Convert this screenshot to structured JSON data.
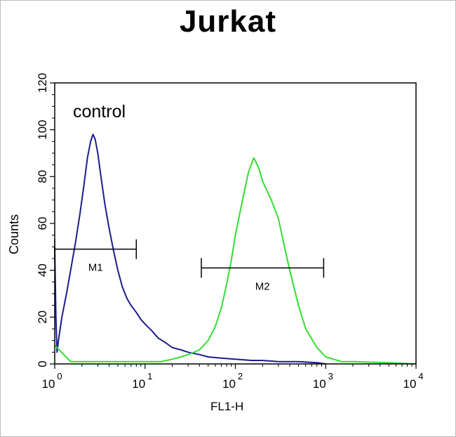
{
  "chart_data": {
    "type": "line",
    "title": "Jurkat",
    "xlabel": "FL1-H",
    "ylabel": "Counts",
    "x_scale": "log",
    "xlim": [
      1,
      10000
    ],
    "ylim": [
      0,
      120
    ],
    "x_ticks": [
      {
        "base": "10",
        "exp": "0"
      },
      {
        "base": "10",
        "exp": "1"
      },
      {
        "base": "10",
        "exp": "2"
      },
      {
        "base": "10",
        "exp": "3"
      },
      {
        "base": "10",
        "exp": "4"
      }
    ],
    "y_ticks": [
      "0",
      "20",
      "40",
      "60",
      "80",
      "100",
      "120"
    ],
    "y_tick_values": [
      0,
      20,
      40,
      60,
      80,
      100,
      120
    ],
    "annotation": "control",
    "series": [
      {
        "color": "#1c1c8c",
        "x": [
          1.0,
          1.03,
          1.06,
          1.1,
          1.2,
          1.35,
          1.5,
          1.7,
          1.9,
          2.1,
          2.3,
          2.5,
          2.65,
          2.8,
          3.0,
          3.3,
          3.6,
          4.0,
          4.5,
          5.0,
          5.6,
          6.3,
          7.0,
          8.0,
          9.0,
          10,
          12,
          14,
          17,
          20,
          25,
          30,
          40,
          50,
          70,
          100,
          150,
          200,
          300,
          500,
          800,
          1000
        ],
        "y": [
          50,
          20,
          5,
          10,
          20,
          30,
          40,
          52,
          64,
          76,
          88,
          95,
          98,
          96,
          90,
          78,
          68,
          58,
          48,
          40,
          33,
          28,
          25,
          22,
          19,
          17,
          14,
          11,
          9,
          7,
          6,
          5,
          4,
          3,
          2.5,
          2,
          1.5,
          1.5,
          1,
          1,
          0.5,
          0
        ]
      },
      {
        "color": "#33dd33",
        "x": [
          1.0,
          1.5,
          2,
          3,
          5,
          8,
          10,
          15,
          20,
          25,
          30,
          40,
          50,
          60,
          70,
          80,
          90,
          100,
          120,
          140,
          160,
          180,
          200,
          250,
          300,
          350,
          400,
          500,
          600,
          800,
          1000,
          1500,
          2000,
          5000,
          10000
        ],
        "y": [
          8,
          1,
          1,
          1,
          1,
          1,
          1,
          1,
          2,
          3,
          4,
          6,
          10,
          16,
          24,
          34,
          44,
          55,
          70,
          82,
          88,
          84,
          78,
          70,
          62,
          50,
          40,
          25,
          15,
          7,
          3,
          1,
          1,
          0.5,
          0
        ]
      }
    ],
    "markers": [
      {
        "label": "M1",
        "x_range": [
          1,
          8
        ],
        "y": 49
      },
      {
        "label": "M2",
        "x_range": [
          42,
          950
        ],
        "y": 41
      }
    ]
  }
}
